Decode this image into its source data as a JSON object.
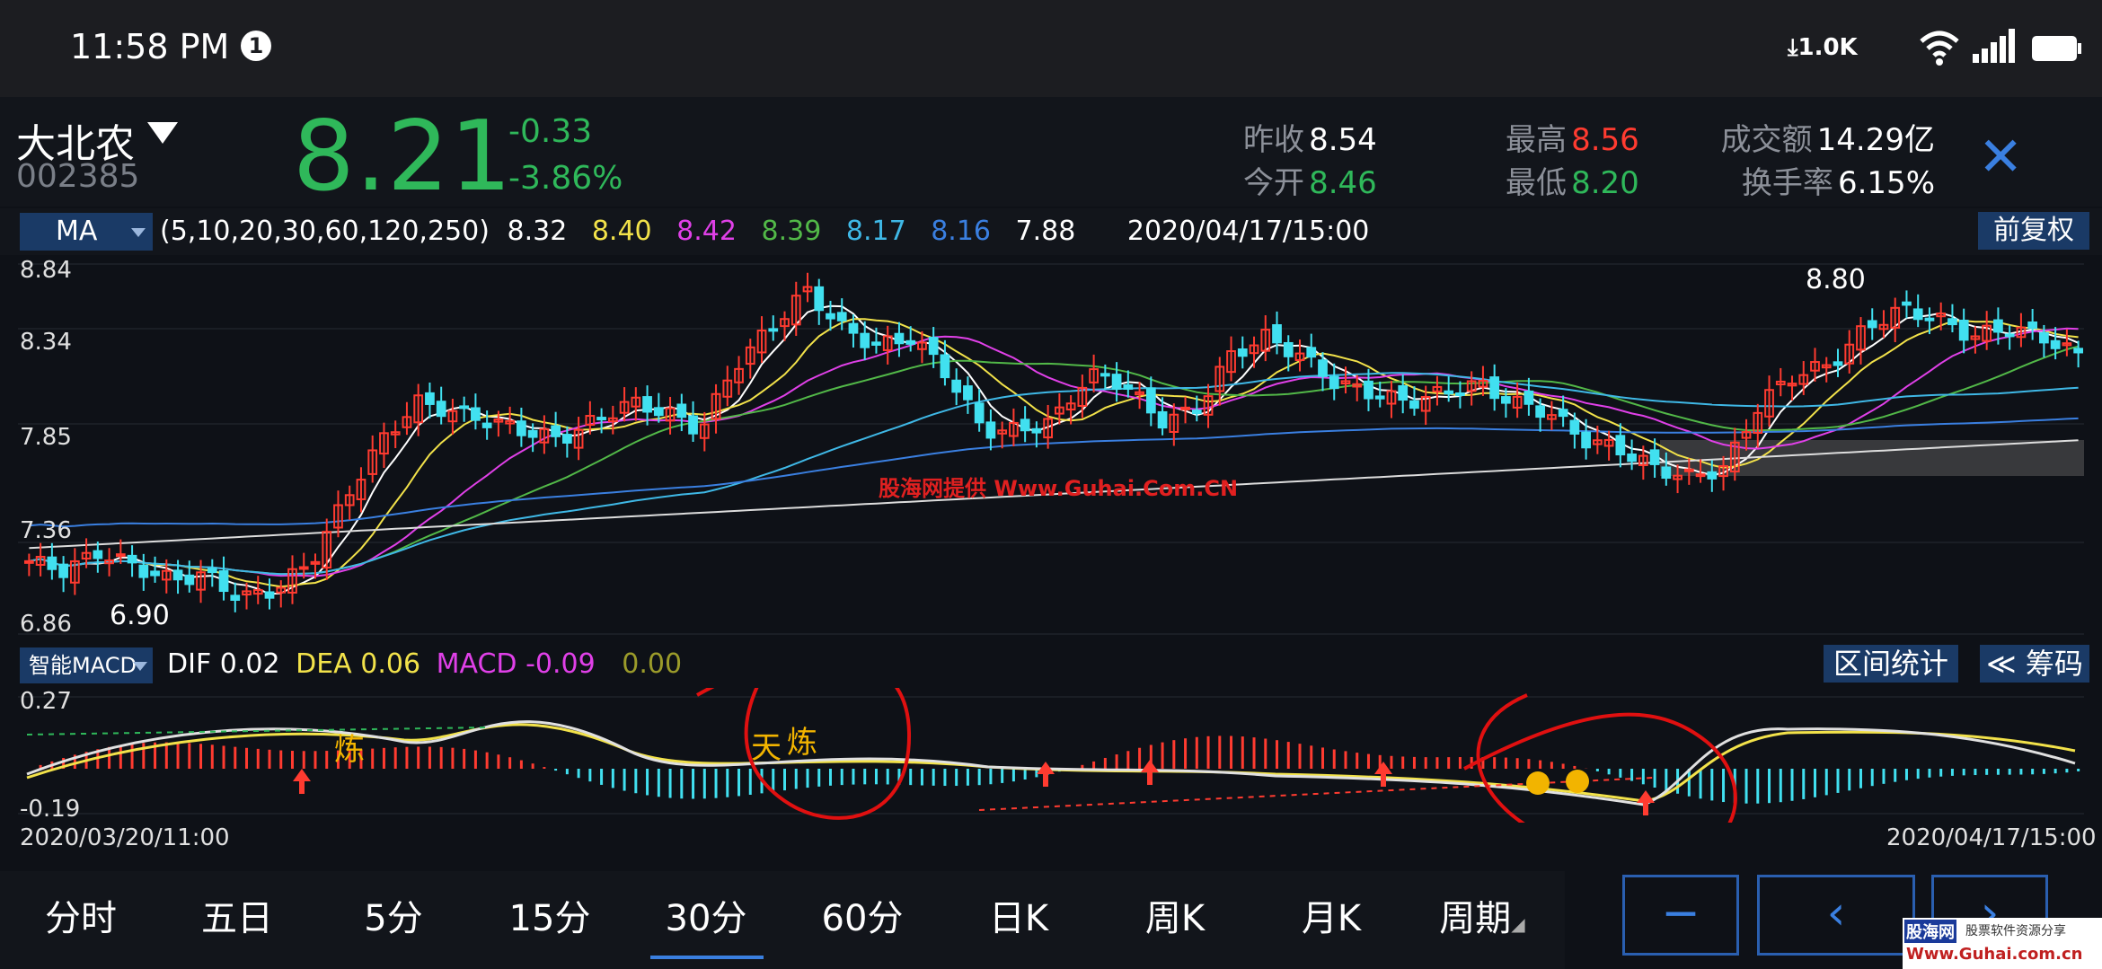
{
  "status": {
    "time": "11:58 PM",
    "notif": "1",
    "net_speed": "1.0K"
  },
  "stock": {
    "name": "大北农",
    "code": "002385",
    "price": "8.21",
    "change": "-0.33",
    "change_pct": "-3.86%"
  },
  "quote": {
    "prev_close_label": "昨收",
    "prev_close": "8.54",
    "open_label": "今开",
    "open": "8.46",
    "high_label": "最高",
    "high": "8.56",
    "low_label": "最低",
    "low": "8.20",
    "amount_label": "成交额",
    "amount": "14.29亿",
    "turnover_label": "换手率",
    "turnover": "6.15%"
  },
  "ma_bar": {
    "indicator": "MA",
    "params": "(5,10,20,30,60,120,250)",
    "values": [
      "8.32",
      "8.40",
      "8.42",
      "8.39",
      "8.17",
      "8.16",
      "7.88"
    ],
    "datetime": "2020/04/17/15:00",
    "adjust_button": "前复权"
  },
  "colors": {
    "up": "#ff3b30",
    "down": "#2fb85a",
    "cyan": "#41e0f0",
    "panel": "#1a3a66",
    "ma": [
      "#ffffff",
      "#f2e24a",
      "#e040e8",
      "#52b848",
      "#3fb8e6",
      "#3a7fe0",
      "#dddddd"
    ]
  },
  "price_axis": [
    "8.84",
    "8.34",
    "7.85",
    "7.36",
    "6.86"
  ],
  "annotations": {
    "high_mark": "8.80",
    "low_mark": "6.90",
    "watermark": "股海网提供 Www.Guhai.Com.CN"
  },
  "macd_bar": {
    "indicator": "智能MACD",
    "dif_label": "DIF",
    "dif": "0.02",
    "dea_label": "DEA",
    "dea": "0.06",
    "macd_label": "MACD",
    "macd": "-0.09",
    "extra": "0.00",
    "range_stats_button": "区间统计",
    "chips_button": "≪ 筹码"
  },
  "macd_axis": [
    "0.27",
    "-0.19"
  ],
  "date_range": {
    "start": "2020/03/20/11:00",
    "end": "2020/04/17/15:00"
  },
  "tabs": [
    "分时",
    "五日",
    "5分",
    "15分",
    "30分",
    "60分",
    "日K",
    "周K",
    "月K",
    "周期"
  ],
  "active_tab": "30分",
  "nav": {
    "minus": "−",
    "prev": "‹",
    "next": "›"
  },
  "logo": {
    "brand": "股海网",
    "slogan": "股票软件资源分享",
    "url": "Www.Guhai.com.cn"
  }
}
